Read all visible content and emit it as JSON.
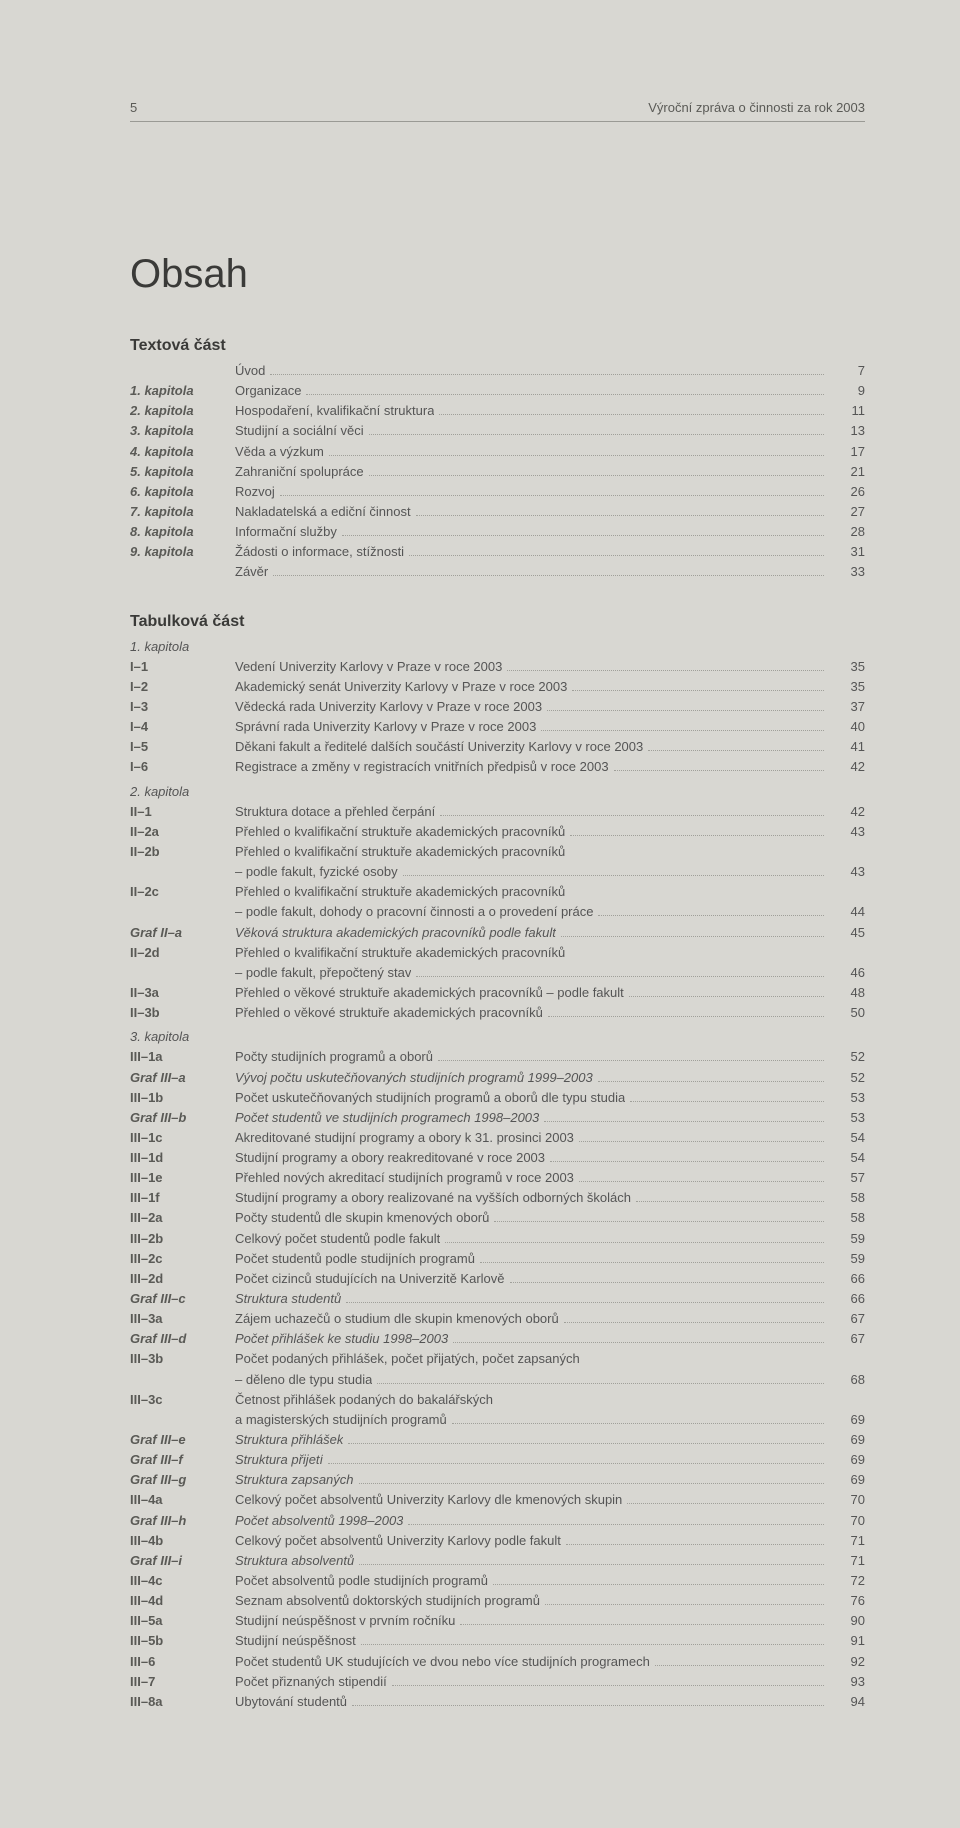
{
  "header": {
    "page_no": "5",
    "running_title": "Výroční zpráva o činnosti za rok 2003"
  },
  "title": "Obsah",
  "section_textova": "Textová část",
  "section_tabulkova": "Tabulková část",
  "textova": [
    {
      "label": "",
      "title": "Úvod",
      "page": "7"
    },
    {
      "label": "1. kapitola",
      "ital": true,
      "title": "Organizace",
      "page": "9"
    },
    {
      "label": "2. kapitola",
      "ital": true,
      "title": "Hospodaření, kvalifikační struktura",
      "page": "11"
    },
    {
      "label": "3. kapitola",
      "ital": true,
      "title": "Studijní a sociální věci",
      "page": "13"
    },
    {
      "label": "4. kapitola",
      "ital": true,
      "title": "Věda a výzkum",
      "page": "17"
    },
    {
      "label": "5. kapitola",
      "ital": true,
      "title": "Zahraniční spolupráce",
      "page": "21"
    },
    {
      "label": "6. kapitola",
      "ital": true,
      "title": "Rozvoj",
      "page": "26"
    },
    {
      "label": "7. kapitola",
      "ital": true,
      "title": "Nakladatelská a ediční činnost",
      "page": "27"
    },
    {
      "label": "8. kapitola",
      "ital": true,
      "title": "Informační služby",
      "page": "28"
    },
    {
      "label": "9. kapitola",
      "ital": true,
      "title": "Žádosti o informace, stížnosti",
      "page": "31"
    },
    {
      "label": "",
      "title": "Závěr",
      "page": "33"
    }
  ],
  "tabulkova": [
    {
      "chapter": "1. kapitola"
    },
    {
      "label": "I–1",
      "title": "Vedení Univerzity Karlovy v Praze v roce 2003",
      "page": "35"
    },
    {
      "label": "I–2",
      "title": "Akademický senát Univerzity Karlovy v Praze v roce 2003",
      "page": "35"
    },
    {
      "label": "I–3",
      "title": "Vědecká rada Univerzity Karlovy v Praze v roce 2003",
      "page": "37"
    },
    {
      "label": "I–4",
      "title": "Správní rada Univerzity Karlovy v Praze v roce 2003",
      "page": "40"
    },
    {
      "label": "I–5",
      "title": "Děkani fakult a ředitelé dalších součástí Univerzity Karlovy v roce 2003",
      "page": "41"
    },
    {
      "label": "I–6",
      "title": "Registrace a změny v registracích vnitřních předpisů v roce 2003",
      "page": "42"
    },
    {
      "chapter": "2. kapitola"
    },
    {
      "label": "II–1",
      "title": "Struktura dotace a přehled čerpání",
      "page": "42"
    },
    {
      "label": "II–2a",
      "title": "Přehled o kvalifikační struktuře akademických pracovníků",
      "page": "43"
    },
    {
      "label": "II–2b",
      "title": "Přehled o kvalifikační struktuře akademických pracovníků",
      "noleader": true,
      "nopage": true
    },
    {
      "label": "",
      "title": "– podle fakult, fyzické osoby",
      "page": "43"
    },
    {
      "label": "II–2c",
      "title": "Přehled o kvalifikační struktuře akademických pracovníků",
      "noleader": true,
      "nopage": true
    },
    {
      "label": "",
      "title": "– podle fakult, dohody o pracovní činnosti a o provedení práce",
      "page": "44"
    },
    {
      "label": "Graf II–a",
      "ital": true,
      "title_ital": true,
      "title": "Věková struktura akademických pracovníků podle fakult",
      "page": "45"
    },
    {
      "label": "II–2d",
      "title": "Přehled o kvalifikační struktuře akademických pracovníků",
      "noleader": true,
      "nopage": true
    },
    {
      "label": "",
      "title": "– podle fakult, přepočtený stav",
      "page": "46"
    },
    {
      "label": "II–3a",
      "title": "Přehled o věkové struktuře akademických pracovníků – podle fakult",
      "page": "48"
    },
    {
      "label": "II–3b",
      "title": "Přehled o věkové struktuře akademických pracovníků",
      "page": "50"
    },
    {
      "chapter": "3. kapitola"
    },
    {
      "label": "III–1a",
      "title": "Počty studijních programů a oborů",
      "page": "52"
    },
    {
      "label": "Graf III–a",
      "ital": true,
      "title_ital": true,
      "title": "Vývoj počtu uskutečňovaných studijních programů 1999–2003",
      "page": "52"
    },
    {
      "label": "III–1b",
      "title": "Počet uskutečňovaných studijních programů a oborů dle typu studia",
      "page": "53"
    },
    {
      "label": "Graf III–b",
      "ital": true,
      "title_ital": true,
      "title": "Počet studentů ve studijních programech 1998–2003",
      "page": "53"
    },
    {
      "label": "III–1c",
      "title": "Akreditované studijní programy a obory k 31. prosinci 2003",
      "page": "54"
    },
    {
      "label": "III–1d",
      "title": "Studijní programy a obory reakreditované v roce 2003",
      "page": "54"
    },
    {
      "label": "III–1e",
      "title": "Přehled nových akreditací studijních programů v roce 2003",
      "page": "57"
    },
    {
      "label": "III–1f",
      "title": "Studijní programy a obory realizované na vyšších odborných školách",
      "page": "58"
    },
    {
      "label": "III–2a",
      "title": "Počty studentů dle skupin kmenových oborů",
      "page": "58"
    },
    {
      "label": "III–2b",
      "title": "Celkový počet studentů podle fakult",
      "page": "59"
    },
    {
      "label": "III–2c",
      "title": "Počet studentů podle studijních programů",
      "page": "59"
    },
    {
      "label": "III–2d",
      "title": "Počet cizinců studujících na Univerzitě Karlově",
      "page": "66"
    },
    {
      "label": "Graf III–c",
      "ital": true,
      "title_ital": true,
      "title": "Struktura studentů",
      "page": "66"
    },
    {
      "label": "III–3a",
      "title": "Zájem uchazečů o studium dle skupin kmenových oborů",
      "page": "67"
    },
    {
      "label": "Graf III–d",
      "ital": true,
      "title_ital": true,
      "title": "Počet přihlášek ke studiu 1998–2003",
      "page": "67"
    },
    {
      "label": "III–3b",
      "title": "Počet podaných přihlášek, počet přijatých, počet zapsaných",
      "noleader": true,
      "nopage": true
    },
    {
      "label": "",
      "title": "– děleno dle typu studia",
      "page": "68"
    },
    {
      "label": "III–3c",
      "title": "Četnost přihlášek podaných do bakalářských",
      "noleader": true,
      "nopage": true
    },
    {
      "label": "",
      "title": "a magisterských studijních programů",
      "page": "69"
    },
    {
      "label": "Graf III–e",
      "ital": true,
      "title_ital": true,
      "title": "Struktura přihlášek",
      "page": "69"
    },
    {
      "label": "Graf III–f",
      "ital": true,
      "title_ital": true,
      "title": "Struktura přijetí",
      "page": "69"
    },
    {
      "label": "Graf III–g",
      "ital": true,
      "title_ital": true,
      "title": "Struktura zapsaných",
      "page": "69"
    },
    {
      "label": "III–4a",
      "title": "Celkový počet absolventů Univerzity Karlovy dle kmenových skupin",
      "page": "70"
    },
    {
      "label": "Graf III–h",
      "ital": true,
      "title_ital": true,
      "title": "Počet absolventů 1998–2003",
      "page": "70"
    },
    {
      "label": "III–4b",
      "title": "Celkový počet absolventů Univerzity Karlovy podle fakult",
      "page": "71"
    },
    {
      "label": "Graf III–i",
      "ital": true,
      "title_ital": true,
      "title": "Struktura absolventů",
      "page": "71"
    },
    {
      "label": "III–4c",
      "title": "Počet absolventů podle studijních programů",
      "page": "72"
    },
    {
      "label": "III–4d",
      "title": "Seznam absolventů doktorských studijních programů",
      "page": "76"
    },
    {
      "label": "III–5a",
      "title": "Studijní neúspěšnost v prvním ročníku",
      "page": "90"
    },
    {
      "label": "III–5b",
      "title": "Studijní neúspěšnost",
      "page": "91"
    },
    {
      "label": "III–6",
      "title": "Počet studentů UK studujících ve dvou nebo více studijních programech",
      "page": "92"
    },
    {
      "label": "III–7",
      "title": "Počet přiznaných stipendií",
      "page": "93"
    },
    {
      "label": "III–8a",
      "title": "Ubytování studentů",
      "page": "94"
    }
  ]
}
